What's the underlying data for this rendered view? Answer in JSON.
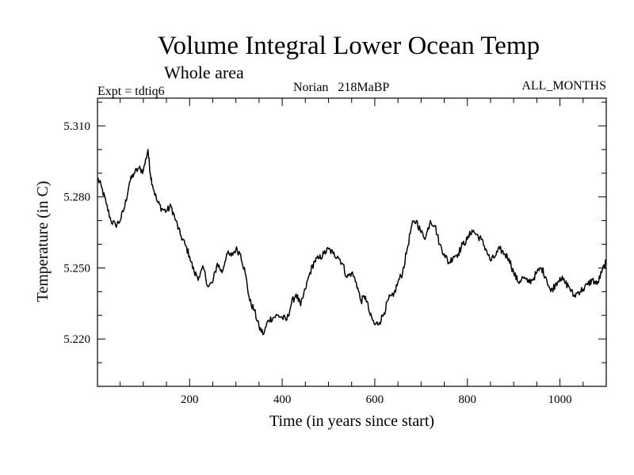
{
  "chart_data": {
    "type": "line",
    "title": "Volume Integral Lower Ocean Temp",
    "subtitle": "Whole area",
    "experiment": "Expt = tdtiq6",
    "stage": "Norian   218MaBP",
    "months": "ALL_MONTHS",
    "xlabel": "Time (in years since start)",
    "ylabel": "Temperature (in C)",
    "xlim": [
      1,
      1100
    ],
    "ylim": [
      5.2,
      5.3217
    ],
    "x_major_ticks": [
      200,
      400,
      600,
      800,
      1000
    ],
    "x_tick_labels": [
      "200",
      "400",
      "600",
      "800",
      "1000"
    ],
    "y_major_ticks": [
      5.22,
      5.25,
      5.28,
      5.31
    ],
    "y_tick_labels": [
      "5.220",
      "5.250",
      "5.280",
      "5.310"
    ],
    "series": [
      {
        "name": "Temperature",
        "color": "#000000",
        "x": [
          1,
          10,
          20,
          30,
          40,
          50,
          60,
          70,
          80,
          90,
          100,
          110,
          115,
          120,
          130,
          140,
          150,
          160,
          170,
          180,
          190,
          200,
          210,
          220,
          230,
          240,
          250,
          260,
          270,
          280,
          290,
          300,
          310,
          320,
          330,
          340,
          350,
          360,
          370,
          380,
          390,
          400,
          410,
          420,
          430,
          440,
          450,
          460,
          470,
          480,
          490,
          500,
          510,
          520,
          530,
          540,
          550,
          560,
          570,
          580,
          590,
          600,
          610,
          620,
          630,
          640,
          650,
          660,
          670,
          680,
          690,
          700,
          710,
          720,
          730,
          740,
          750,
          760,
          770,
          780,
          790,
          800,
          810,
          820,
          830,
          840,
          850,
          860,
          870,
          880,
          890,
          900,
          910,
          920,
          930,
          940,
          950,
          960,
          970,
          980,
          990,
          1000,
          1010,
          1020,
          1030,
          1040,
          1050,
          1060,
          1070,
          1080,
          1090,
          1100
        ],
        "values": [
          5.288,
          5.284,
          5.277,
          5.27,
          5.268,
          5.27,
          5.276,
          5.286,
          5.29,
          5.292,
          5.291,
          5.3,
          5.29,
          5.285,
          5.278,
          5.275,
          5.274,
          5.276,
          5.27,
          5.264,
          5.26,
          5.255,
          5.248,
          5.246,
          5.25,
          5.242,
          5.244,
          5.252,
          5.248,
          5.256,
          5.255,
          5.258,
          5.256,
          5.248,
          5.236,
          5.232,
          5.225,
          5.222,
          5.228,
          5.229,
          5.23,
          5.229,
          5.228,
          5.235,
          5.239,
          5.234,
          5.241,
          5.248,
          5.253,
          5.254,
          5.256,
          5.258,
          5.256,
          5.255,
          5.252,
          5.246,
          5.248,
          5.244,
          5.236,
          5.238,
          5.23,
          5.226,
          5.227,
          5.231,
          5.237,
          5.238,
          5.244,
          5.248,
          5.258,
          5.268,
          5.27,
          5.265,
          5.263,
          5.27,
          5.268,
          5.26,
          5.256,
          5.252,
          5.255,
          5.256,
          5.26,
          5.262,
          5.266,
          5.264,
          5.262,
          5.258,
          5.253,
          5.255,
          5.258,
          5.256,
          5.254,
          5.248,
          5.244,
          5.246,
          5.244,
          5.245,
          5.248,
          5.25,
          5.246,
          5.24,
          5.243,
          5.246,
          5.244,
          5.242,
          5.238,
          5.24,
          5.241,
          5.243,
          5.245,
          5.243,
          5.248,
          5.253
        ]
      }
    ]
  }
}
